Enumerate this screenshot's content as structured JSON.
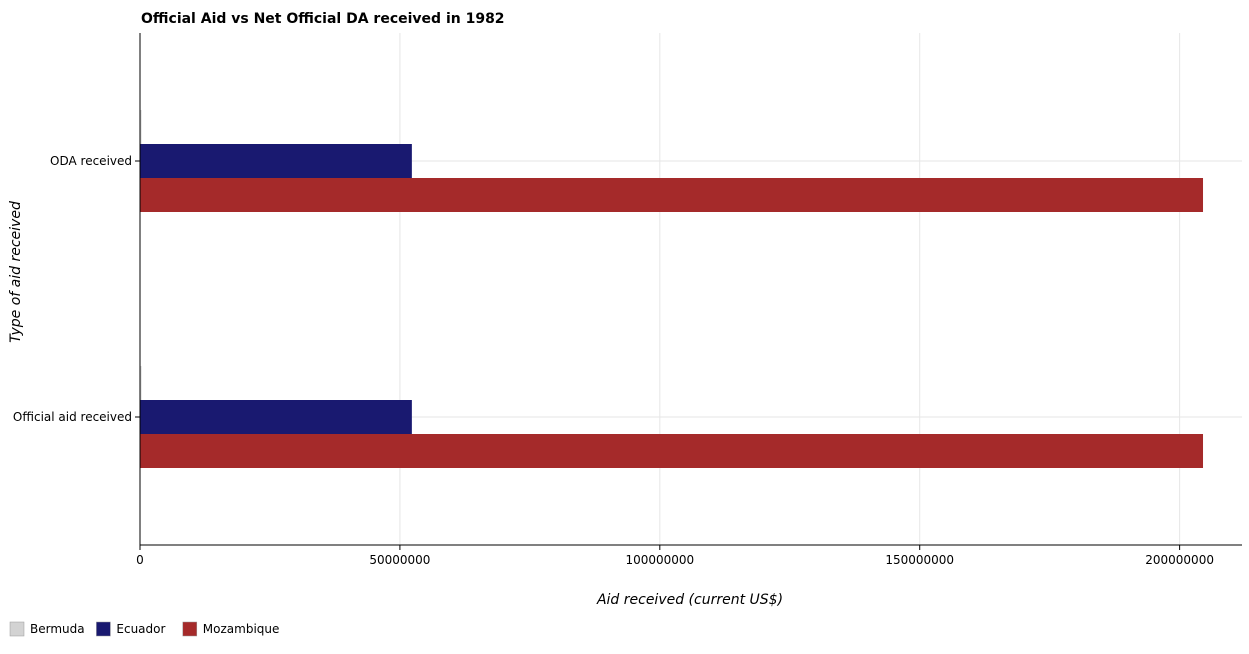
{
  "chart_data": {
    "type": "bar",
    "orientation": "horizontal",
    "title": "Official Aid vs Net Official DA received in 1982",
    "xlabel": "Aid received (current US$)",
    "ylabel": "Type of aid received",
    "categories": [
      "Official aid received",
      "ODA received"
    ],
    "series": [
      {
        "name": "Bermuda",
        "color": "#d3d3d3",
        "values": [
          120000,
          120000
        ]
      },
      {
        "name": "Ecuador",
        "color": "#191970",
        "values": [
          52300000,
          52300000
        ]
      },
      {
        "name": "Mozambique",
        "color": "#a52a2a",
        "values": [
          204500000,
          204500000
        ]
      }
    ],
    "xlim": [
      0,
      212000000
    ],
    "xticks": [
      0,
      50000000,
      100000000,
      150000000,
      200000000
    ],
    "xtick_labels": [
      "0",
      "50000000",
      "100000000",
      "150000000",
      "200000000"
    ],
    "grid": true,
    "legend_position": "bottom-left"
  }
}
